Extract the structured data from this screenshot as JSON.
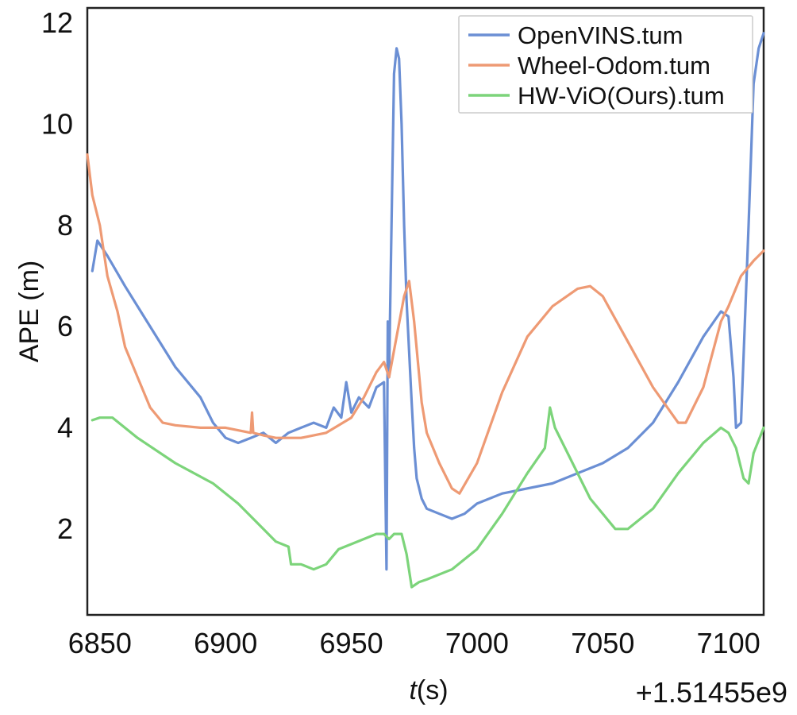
{
  "chart_data": {
    "type": "line",
    "title": "",
    "xlabel_italic": "t",
    "xlabel_unit": "(s)",
    "ylabel": "APE (m)",
    "x_offset_label": "+1.51455e9",
    "xlim": [
      6845,
      7114
    ],
    "ylim": [
      0.3,
      12.3
    ],
    "xticks": [
      6850,
      6900,
      6950,
      7000,
      7050,
      7100
    ],
    "yticks": [
      2,
      4,
      6,
      8,
      10,
      12
    ],
    "grid": false,
    "legend_position": "top-right",
    "series": [
      {
        "name": "OpenVINS.tum",
        "color": "#6b8fd4",
        "points": [
          [
            6847,
            7.1
          ],
          [
            6849,
            7.7
          ],
          [
            6853,
            7.4
          ],
          [
            6860,
            6.8
          ],
          [
            6870,
            6.0
          ],
          [
            6880,
            5.2
          ],
          [
            6890,
            4.6
          ],
          [
            6895,
            4.1
          ],
          [
            6900,
            3.8
          ],
          [
            6905,
            3.7
          ],
          [
            6910,
            3.8
          ],
          [
            6915,
            3.9
          ],
          [
            6920,
            3.7
          ],
          [
            6925,
            3.9
          ],
          [
            6930,
            4.0
          ],
          [
            6935,
            4.1
          ],
          [
            6940,
            4.0
          ],
          [
            6943,
            4.4
          ],
          [
            6946,
            4.2
          ],
          [
            6948,
            4.9
          ],
          [
            6950,
            4.3
          ],
          [
            6953,
            4.6
          ],
          [
            6957,
            4.4
          ],
          [
            6960,
            4.8
          ],
          [
            6963,
            4.9
          ],
          [
            6964,
            1.2
          ],
          [
            6964.5,
            6.1
          ],
          [
            6965,
            5.0
          ],
          [
            6966,
            8.0
          ],
          [
            6967,
            11.0
          ],
          [
            6968,
            11.5
          ],
          [
            6969,
            11.3
          ],
          [
            6970,
            10.0
          ],
          [
            6971,
            8.0
          ],
          [
            6972,
            6.5
          ],
          [
            6973,
            5.5
          ],
          [
            6974,
            4.5
          ],
          [
            6975,
            3.6
          ],
          [
            6976,
            3.0
          ],
          [
            6978,
            2.6
          ],
          [
            6980,
            2.4
          ],
          [
            6985,
            2.3
          ],
          [
            6990,
            2.2
          ],
          [
            6995,
            2.3
          ],
          [
            7000,
            2.5
          ],
          [
            7010,
            2.7
          ],
          [
            7020,
            2.8
          ],
          [
            7030,
            2.9
          ],
          [
            7040,
            3.1
          ],
          [
            7050,
            3.3
          ],
          [
            7060,
            3.6
          ],
          [
            7070,
            4.1
          ],
          [
            7080,
            4.9
          ],
          [
            7090,
            5.8
          ],
          [
            7097,
            6.3
          ],
          [
            7100,
            6.2
          ],
          [
            7102,
            5.0
          ],
          [
            7103,
            4.0
          ],
          [
            7105,
            4.1
          ],
          [
            7108,
            8.0
          ],
          [
            7110,
            10.8
          ],
          [
            7112,
            11.5
          ],
          [
            7114,
            11.8
          ]
        ]
      },
      {
        "name": "Wheel-Odom.tum",
        "color": "#ee9a74",
        "points": [
          [
            6845,
            9.4
          ],
          [
            6847,
            8.6
          ],
          [
            6850,
            8.0
          ],
          [
            6853,
            7.0
          ],
          [
            6857,
            6.3
          ],
          [
            6860,
            5.6
          ],
          [
            6865,
            5.0
          ],
          [
            6870,
            4.4
          ],
          [
            6875,
            4.1
          ],
          [
            6880,
            4.05
          ],
          [
            6890,
            4.0
          ],
          [
            6900,
            4.0
          ],
          [
            6910,
            3.9
          ],
          [
            6910.5,
            4.3
          ],
          [
            6911,
            3.9
          ],
          [
            6915,
            3.85
          ],
          [
            6920,
            3.8
          ],
          [
            6930,
            3.8
          ],
          [
            6940,
            3.9
          ],
          [
            6950,
            4.2
          ],
          [
            6955,
            4.6
          ],
          [
            6960,
            5.1
          ],
          [
            6963,
            5.3
          ],
          [
            6965,
            5.0
          ],
          [
            6968,
            5.8
          ],
          [
            6971,
            6.6
          ],
          [
            6973,
            6.9
          ],
          [
            6975,
            6.1
          ],
          [
            6978,
            4.5
          ],
          [
            6980,
            3.9
          ],
          [
            6985,
            3.3
          ],
          [
            6990,
            2.8
          ],
          [
            6993,
            2.7
          ],
          [
            7000,
            3.3
          ],
          [
            7010,
            4.7
          ],
          [
            7020,
            5.8
          ],
          [
            7030,
            6.4
          ],
          [
            7040,
            6.75
          ],
          [
            7045,
            6.8
          ],
          [
            7050,
            6.6
          ],
          [
            7060,
            5.7
          ],
          [
            7070,
            4.8
          ],
          [
            7080,
            4.1
          ],
          [
            7083,
            4.1
          ],
          [
            7090,
            4.8
          ],
          [
            7097,
            6.1
          ],
          [
            7100,
            6.4
          ],
          [
            7105,
            7.0
          ],
          [
            7110,
            7.3
          ],
          [
            7114,
            7.5
          ]
        ]
      },
      {
        "name": "HW-ViO(Ours).tum",
        "color": "#7cd47a",
        "points": [
          [
            6847,
            4.15
          ],
          [
            6850,
            4.2
          ],
          [
            6855,
            4.2
          ],
          [
            6865,
            3.8
          ],
          [
            6880,
            3.3
          ],
          [
            6895,
            2.9
          ],
          [
            6905,
            2.5
          ],
          [
            6915,
            2.0
          ],
          [
            6920,
            1.75
          ],
          [
            6925,
            1.65
          ],
          [
            6926,
            1.3
          ],
          [
            6930,
            1.3
          ],
          [
            6935,
            1.2
          ],
          [
            6940,
            1.3
          ],
          [
            6945,
            1.6
          ],
          [
            6950,
            1.7
          ],
          [
            6960,
            1.9
          ],
          [
            6963,
            1.9
          ],
          [
            6965,
            1.8
          ],
          [
            6967,
            1.9
          ],
          [
            6970,
            1.9
          ],
          [
            6972,
            1.5
          ],
          [
            6974,
            0.85
          ],
          [
            6977,
            0.95
          ],
          [
            6980,
            1.0
          ],
          [
            6990,
            1.2
          ],
          [
            7000,
            1.6
          ],
          [
            7010,
            2.3
          ],
          [
            7020,
            3.1
          ],
          [
            7027,
            3.6
          ],
          [
            7029,
            4.4
          ],
          [
            7031,
            4.0
          ],
          [
            7035,
            3.6
          ],
          [
            7045,
            2.6
          ],
          [
            7055,
            2.0
          ],
          [
            7060,
            2.0
          ],
          [
            7070,
            2.4
          ],
          [
            7080,
            3.1
          ],
          [
            7090,
            3.7
          ],
          [
            7097,
            4.0
          ],
          [
            7100,
            3.9
          ],
          [
            7103,
            3.6
          ],
          [
            7106,
            3.0
          ],
          [
            7108,
            2.9
          ],
          [
            7110,
            3.5
          ],
          [
            7114,
            4.0
          ]
        ]
      }
    ]
  }
}
